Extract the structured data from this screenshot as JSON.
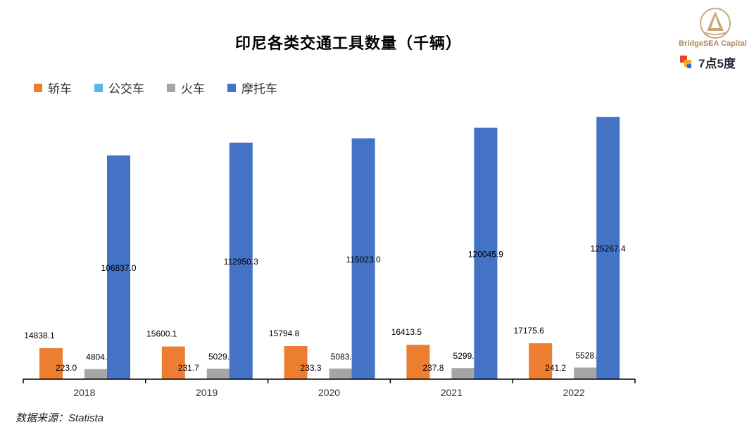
{
  "chart_data": {
    "type": "bar",
    "title": "印尼各类交通工具数量（千辆）",
    "categories": [
      "2018",
      "2019",
      "2020",
      "2021",
      "2022"
    ],
    "series": [
      {
        "name": "轿车",
        "color": "#ED7D31",
        "values": [
          14838.1,
          15600.1,
          15794.8,
          16413.5,
          17175.6
        ]
      },
      {
        "name": "公交车",
        "color": "#5BB5E6",
        "values": [
          223.0,
          231.7,
          233.3,
          237.8,
          241.2
        ]
      },
      {
        "name": "火车",
        "color": "#A5A5A5",
        "values": [
          4804.2,
          5029.3,
          5083.4,
          5299.6,
          5528.7
        ]
      },
      {
        "name": "摩托车",
        "color": "#4472C4",
        "values": [
          106837.0,
          112950.3,
          115023.0,
          120045.9,
          125267.4
        ]
      }
    ],
    "xlabel": "",
    "ylabel": "",
    "ylim": [
      0,
      130000
    ],
    "grid": false,
    "legend": "top-left"
  },
  "source": "数据来源：Statista",
  "logo": {
    "brand": "BridgeSEA Capital",
    "partner": "7点5度"
  }
}
